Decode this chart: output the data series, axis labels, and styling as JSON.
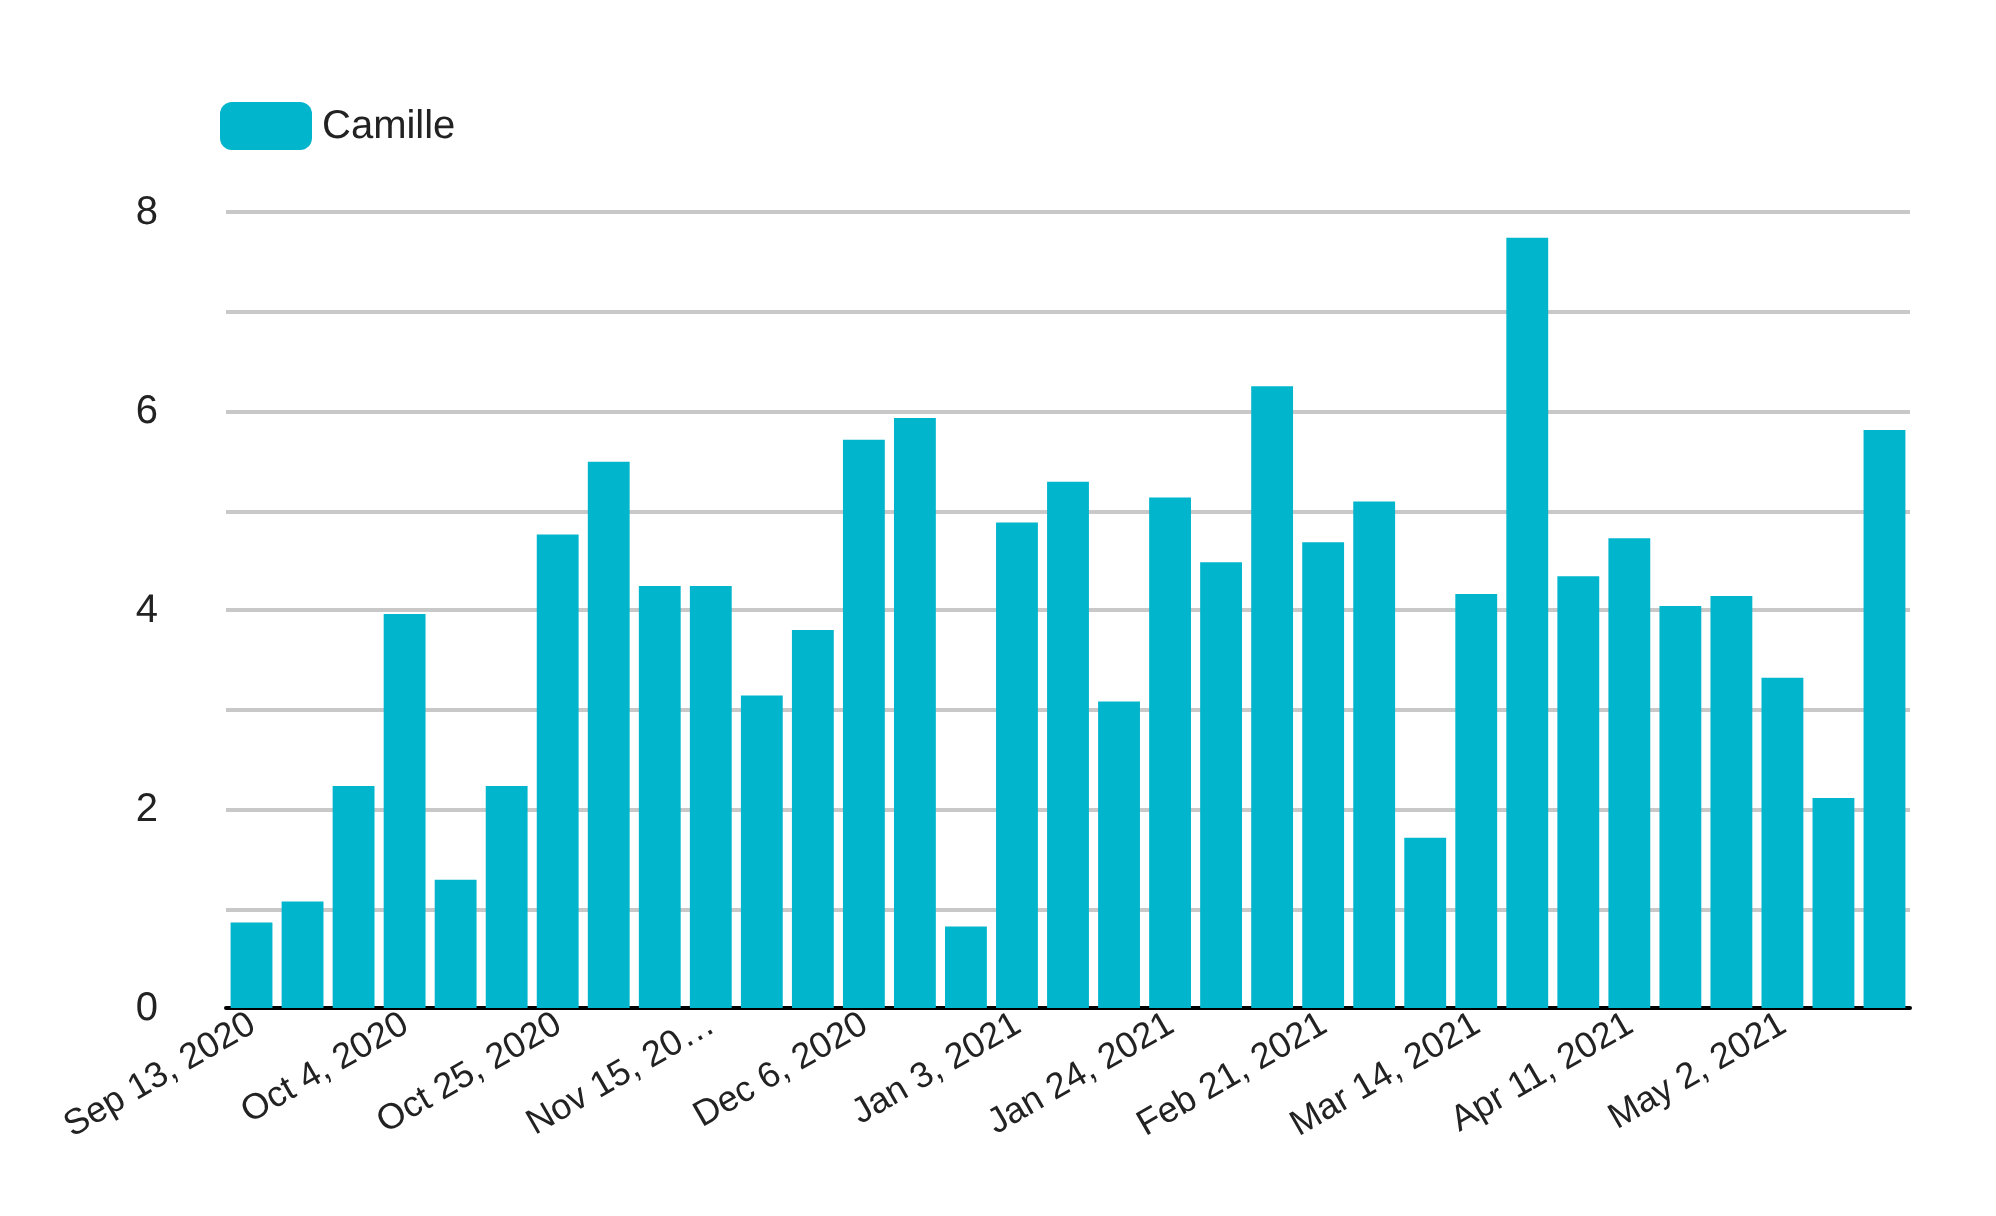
{
  "chart_data": {
    "type": "bar",
    "categories": [
      "Sep 13, 2020",
      null,
      null,
      "Oct 4, 2020",
      null,
      null,
      "Oct 25, 2020",
      null,
      null,
      "Nov 15, 20…",
      null,
      null,
      "Dec 6, 2020",
      null,
      null,
      "Jan 3, 2021",
      null,
      null,
      "Jan 24, 2021",
      null,
      null,
      "Feb 21, 2021",
      null,
      null,
      "Mar 14, 2021",
      null,
      null,
      "Apr 11, 2021",
      null,
      null,
      "May 2, 2021",
      null,
      null
    ],
    "series": [
      {
        "name": "Camille",
        "color": "#00b5cc",
        "values": [
          0.86,
          1.07,
          2.23,
          3.96,
          1.29,
          2.23,
          4.76,
          5.49,
          4.24,
          4.24,
          3.14,
          3.8,
          5.71,
          5.93,
          0.82,
          4.88,
          5.29,
          3.08,
          5.13,
          4.48,
          6.25,
          4.68,
          5.09,
          1.71,
          4.16,
          7.74,
          4.34,
          4.72,
          4.04,
          4.14,
          3.32,
          2.11,
          5.81
        ]
      }
    ],
    "ylim": [
      0,
      8
    ],
    "yticks": [
      0,
      {
        "value": 1,
        "label": null
      },
      2,
      {
        "value": 3,
        "label": null
      },
      4,
      {
        "value": 5,
        "label": null
      },
      6,
      {
        "value": 7,
        "label": null
      },
      8
    ],
    "grid": "y",
    "legend": "top left"
  }
}
